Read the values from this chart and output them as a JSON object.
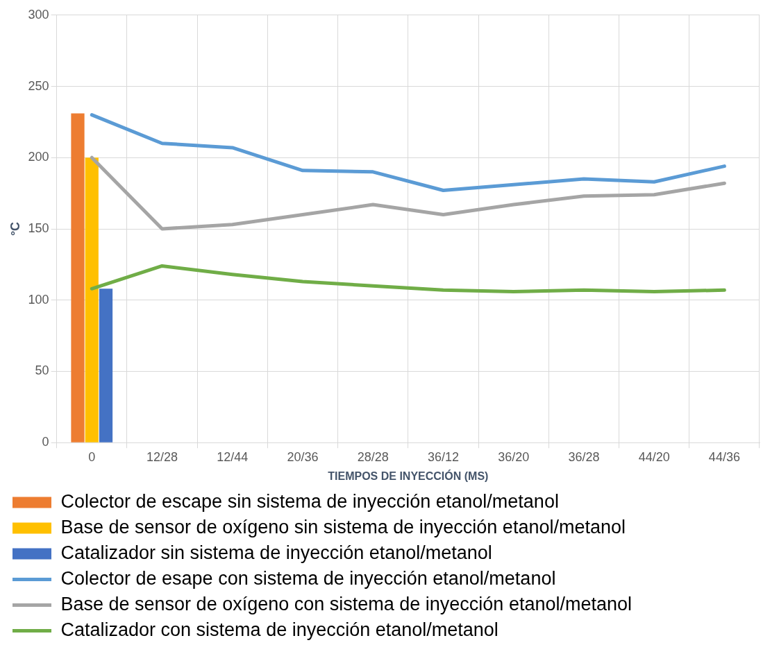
{
  "chart_data": {
    "type": "bar",
    "xlabel": "TIEMPOS DE INYECCIÓN (MS)",
    "ylabel": "°C",
    "categories": [
      "0",
      "12/28",
      "12/44",
      "20/36",
      "28/28",
      "36/12",
      "36/20",
      "36/28",
      "44/20",
      "44/36"
    ],
    "series": [
      {
        "name": "Colector de escape sin sistema de inyección etanol/metanol",
        "color": "#ed7d31",
        "values": [
          231,
          null,
          null,
          null,
          null,
          null,
          null,
          null,
          null,
          null
        ]
      },
      {
        "name": "Base de sensor de oxígeno sin sistema de inyección etanol/metanol",
        "color": "#ffc000",
        "values": [
          200,
          null,
          null,
          null,
          null,
          null,
          null,
          null,
          null,
          null
        ]
      },
      {
        "name": "Catalizador sin sistema de inyección etanol/metanol",
        "color": "#4472c4",
        "values": [
          108,
          null,
          null,
          null,
          null,
          null,
          null,
          null,
          null,
          null
        ]
      },
      {
        "name": "Colector de esape con sistema de inyección etanol/metanol",
        "type": "line",
        "color": "#5b9bd5",
        "values": [
          230,
          210,
          207,
          191,
          190,
          177,
          181,
          185,
          183,
          194
        ]
      },
      {
        "name": "Base de sensor de oxígeno con sistema de inyección etanol/metanol",
        "type": "line",
        "color": "#a5a5a5",
        "values": [
          200,
          150,
          153,
          160,
          167,
          160,
          167,
          173,
          174,
          182
        ]
      },
      {
        "name": "Catalizador con sistema de inyección etanol/metanol",
        "type": "line",
        "color": "#70ad47",
        "values": [
          108,
          124,
          118,
          113,
          110,
          107,
          106,
          107,
          106,
          107
        ]
      }
    ],
    "ylim": [
      0,
      300
    ],
    "yticks": [
      0,
      50,
      100,
      150,
      200,
      250,
      300
    ],
    "grid": true,
    "legend": "bottom",
    "marker": "none"
  }
}
